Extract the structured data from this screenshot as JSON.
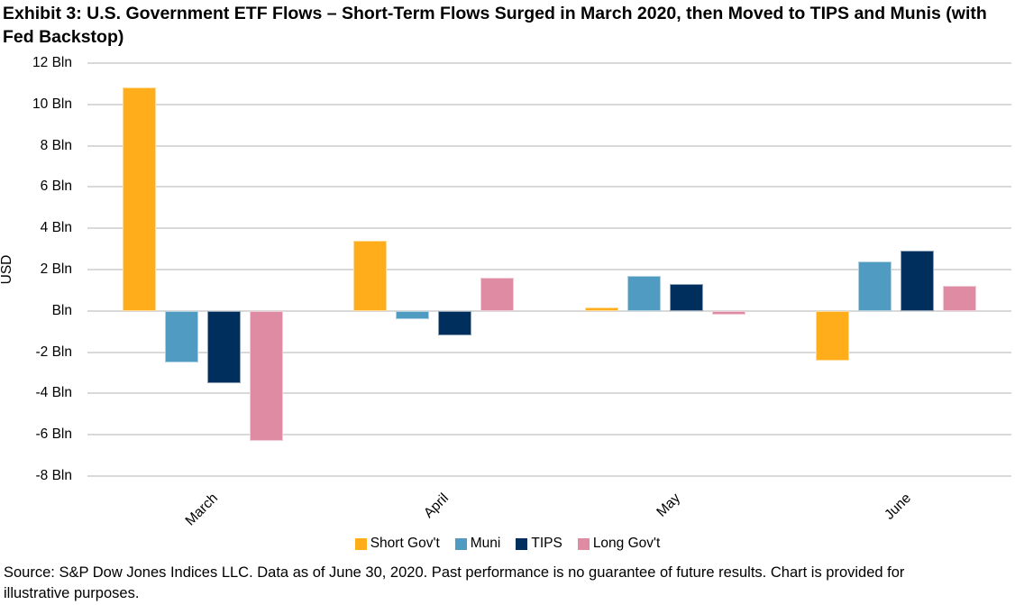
{
  "title": "Exhibit 3: U.S. Government ETF Flows – Short-Term Flows Surged in March 2020, then Moved to TIPS and Munis (with Fed Backstop)",
  "source": "Source: S&P Dow Jones Indices LLC. Data as of June 30, 2020. Past performance is no guarantee of future results. Chart is provided for illustrative purposes.",
  "chart_data": {
    "type": "bar",
    "title": "Exhibit 3: U.S. Government ETF Flows – Short-Term Flows Surged in March 2020, then Moved to TIPS and Munis (with Fed Backstop)",
    "categories": [
      "March",
      "April",
      "May",
      "June"
    ],
    "series": [
      {
        "name": "Short Gov't",
        "color": "#FFAD1A",
        "values": [
          10.8,
          3.4,
          0.15,
          -2.4
        ]
      },
      {
        "name": "Muni",
        "color": "#4F9BC2",
        "values": [
          -2.5,
          -0.4,
          1.7,
          2.4
        ]
      },
      {
        "name": "TIPS",
        "color": "#002F5E",
        "values": [
          -3.5,
          -1.2,
          1.3,
          2.9
        ]
      },
      {
        "name": "Long Gov't",
        "color": "#DE8BA3",
        "values": [
          -6.3,
          1.6,
          -0.2,
          1.2
        ]
      }
    ],
    "xlabel": "",
    "ylabel": "USD",
    "ylim": [
      -8,
      12
    ],
    "ytick_step": 2,
    "ytick_labels": [
      "12 Bln",
      "10 Bln",
      "8 Bln",
      "6 Bln",
      "4 Bln",
      "2 Bln",
      "Bln",
      "-2 Bln",
      "-4 Bln",
      "-6 Bln",
      "-8 Bln"
    ],
    "grid": "horizontal",
    "gridline_color": "#D9D9D9",
    "legend_position": "bottom"
  }
}
